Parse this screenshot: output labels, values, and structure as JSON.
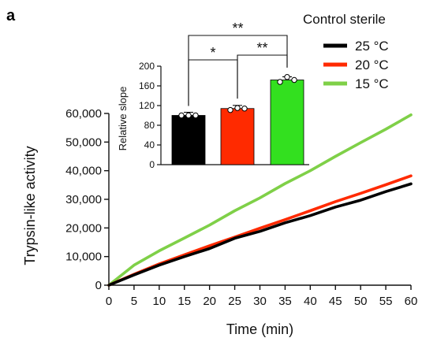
{
  "panel_label": "a",
  "legend": {
    "title": "Control sterile",
    "entries": [
      {
        "label": "25 °C",
        "color": "#000000"
      },
      {
        "label": "20 °C",
        "color": "#ff2a00"
      },
      {
        "label": "15 °C",
        "color": "#7fd048"
      }
    ]
  },
  "chart_data": [
    {
      "type": "line",
      "xlabel": "Time (min)",
      "ylabel": "Trypsin-like activity",
      "xlim": [
        0,
        60
      ],
      "ylim": [
        0,
        60000
      ],
      "x_ticks": [
        "0",
        "5",
        "10",
        "15",
        "20",
        "25",
        "30",
        "35",
        "40",
        "45",
        "50",
        "55",
        "60"
      ],
      "y_ticks": [
        "0",
        "10,000",
        "20,000",
        "30,000",
        "40,000",
        "50,000",
        "60,000"
      ],
      "x": [
        0,
        5,
        10,
        15,
        20,
        25,
        30,
        35,
        40,
        45,
        50,
        55,
        60
      ],
      "series": [
        {
          "name": "15 °C",
          "color": "#7fd048",
          "values": [
            0,
            7000,
            12000,
            16500,
            21000,
            26000,
            30500,
            35500,
            40000,
            45000,
            49800,
            54500,
            59500
          ]
        },
        {
          "name": "20 °C",
          "color": "#ff2a00",
          "values": [
            0,
            3800,
            7400,
            10600,
            13800,
            16800,
            19900,
            22900,
            26000,
            29200,
            32100,
            35100,
            38200
          ]
        },
        {
          "name": "25 °C",
          "color": "#000000",
          "values": [
            0,
            3600,
            7000,
            10000,
            12800,
            16400,
            18800,
            21800,
            24300,
            27300,
            29700,
            32700,
            35400
          ]
        }
      ]
    },
    {
      "type": "bar",
      "ylabel": "Relative slope",
      "ylim": [
        0,
        200
      ],
      "y_ticks": [
        "0",
        "40",
        "80",
        "120",
        "160",
        "200"
      ],
      "categories": [
        "25 °C",
        "20 °C",
        "15 °C"
      ],
      "values": [
        100,
        114,
        172
      ],
      "colors": [
        "#000000",
        "#ff2a00",
        "#33e01f"
      ],
      "points": [
        [
          100,
          100,
          100
        ],
        [
          111,
          115,
          114
        ],
        [
          168,
          178,
          172
        ]
      ],
      "significance": [
        {
          "from": 0,
          "to": 1,
          "label": "*"
        },
        {
          "from": 1,
          "to": 2,
          "label": "**"
        },
        {
          "from": 0,
          "to": 2,
          "label": "**"
        }
      ]
    }
  ]
}
